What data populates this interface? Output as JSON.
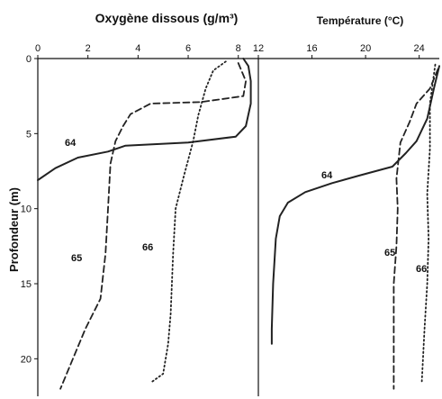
{
  "chart_data": [
    {
      "type": "line",
      "title": "Oxygène dissous (g/m³)",
      "xlabel": "",
      "ylabel": "Profondeur (m)",
      "xlim": [
        0,
        8.8
      ],
      "ylim": [
        22.5,
        0
      ],
      "x_ticks": [
        "0",
        "2",
        "4",
        "6",
        "8"
      ],
      "y_ticks": [
        "0",
        "5",
        "10",
        "15",
        "20"
      ],
      "grid": false,
      "series": [
        {
          "name": "64",
          "style": "solid",
          "points": [
            [
              8.2,
              0
            ],
            [
              8.4,
              0.5
            ],
            [
              8.5,
              1.5
            ],
            [
              8.5,
              3
            ],
            [
              8.3,
              4.5
            ],
            [
              7.9,
              5.2
            ],
            [
              6.0,
              5.6
            ],
            [
              3.5,
              5.8
            ],
            [
              2.8,
              6.2
            ],
            [
              1.6,
              6.6
            ],
            [
              0.7,
              7.3
            ],
            [
              0,
              8.1
            ]
          ]
        },
        {
          "name": "65",
          "style": "dashed",
          "points": [
            [
              8.0,
              0.3
            ],
            [
              8.3,
              1.5
            ],
            [
              8.2,
              2.5
            ],
            [
              6.5,
              2.9
            ],
            [
              4.5,
              3.0
            ],
            [
              3.7,
              3.7
            ],
            [
              3.4,
              4.5
            ],
            [
              3.1,
              5.5
            ],
            [
              2.9,
              7.0
            ],
            [
              2.8,
              10.0
            ],
            [
              2.7,
              13.0
            ],
            [
              2.5,
              16.0
            ],
            [
              1.9,
              18.0
            ],
            [
              1.4,
              20.0
            ],
            [
              0.9,
              22.0
            ]
          ]
        },
        {
          "name": "66",
          "style": "dotted",
          "points": [
            [
              7.5,
              0.2
            ],
            [
              7.0,
              0.8
            ],
            [
              6.7,
              2.0
            ],
            [
              6.4,
              3.8
            ],
            [
              6.2,
              5.5
            ],
            [
              5.8,
              8.0
            ],
            [
              5.5,
              10.0
            ],
            [
              5.4,
              13.0
            ],
            [
              5.3,
              17.0
            ],
            [
              5.2,
              19.0
            ],
            [
              5.0,
              21.0
            ],
            [
              4.5,
              21.6
            ]
          ]
        }
      ],
      "labels": [
        "64",
        "65",
        "66"
      ]
    },
    {
      "type": "line",
      "title": "Température (°C)",
      "xlim": [
        12,
        25.5
      ],
      "ylim": [
        22.5,
        0
      ],
      "x_ticks": [
        "12",
        "16",
        "20",
        "24"
      ],
      "grid": false,
      "series": [
        {
          "name": "64",
          "style": "solid",
          "points": [
            [
              25.5,
              0.5
            ],
            [
              25.1,
              2.0
            ],
            [
              24.6,
              4.0
            ],
            [
              23.8,
              5.5
            ],
            [
              23.0,
              6.3
            ],
            [
              22.0,
              7.2
            ],
            [
              19.5,
              7.8
            ],
            [
              17.5,
              8.3
            ],
            [
              15.5,
              8.9
            ],
            [
              14.2,
              9.6
            ],
            [
              13.6,
              10.5
            ],
            [
              13.3,
              12.0
            ],
            [
              13.1,
              15.0
            ],
            [
              13.0,
              18.0
            ],
            [
              13.0,
              19.0
            ]
          ]
        },
        {
          "name": "65",
          "style": "dashed",
          "points": [
            [
              25.4,
              0.7
            ],
            [
              24.8,
              2.0
            ],
            [
              23.8,
              3.0
            ],
            [
              23.3,
              4.2
            ],
            [
              22.6,
              5.6
            ],
            [
              22.3,
              8.0
            ],
            [
              22.4,
              10.0
            ],
            [
              22.3,
              12.5
            ],
            [
              22.1,
              15.0
            ],
            [
              22.1,
              18.5
            ],
            [
              22.1,
              22.0
            ]
          ]
        },
        {
          "name": "66",
          "style": "dotted",
          "points": [
            [
              25.2,
              0.4
            ],
            [
              24.8,
              3.0
            ],
            [
              24.8,
              6.0
            ],
            [
              24.6,
              9.0
            ],
            [
              24.7,
              12.0
            ],
            [
              24.6,
              15.0
            ],
            [
              24.4,
              18.0
            ],
            [
              24.2,
              21.5
            ]
          ]
        }
      ],
      "labels": [
        "64",
        "65",
        "66"
      ]
    }
  ]
}
